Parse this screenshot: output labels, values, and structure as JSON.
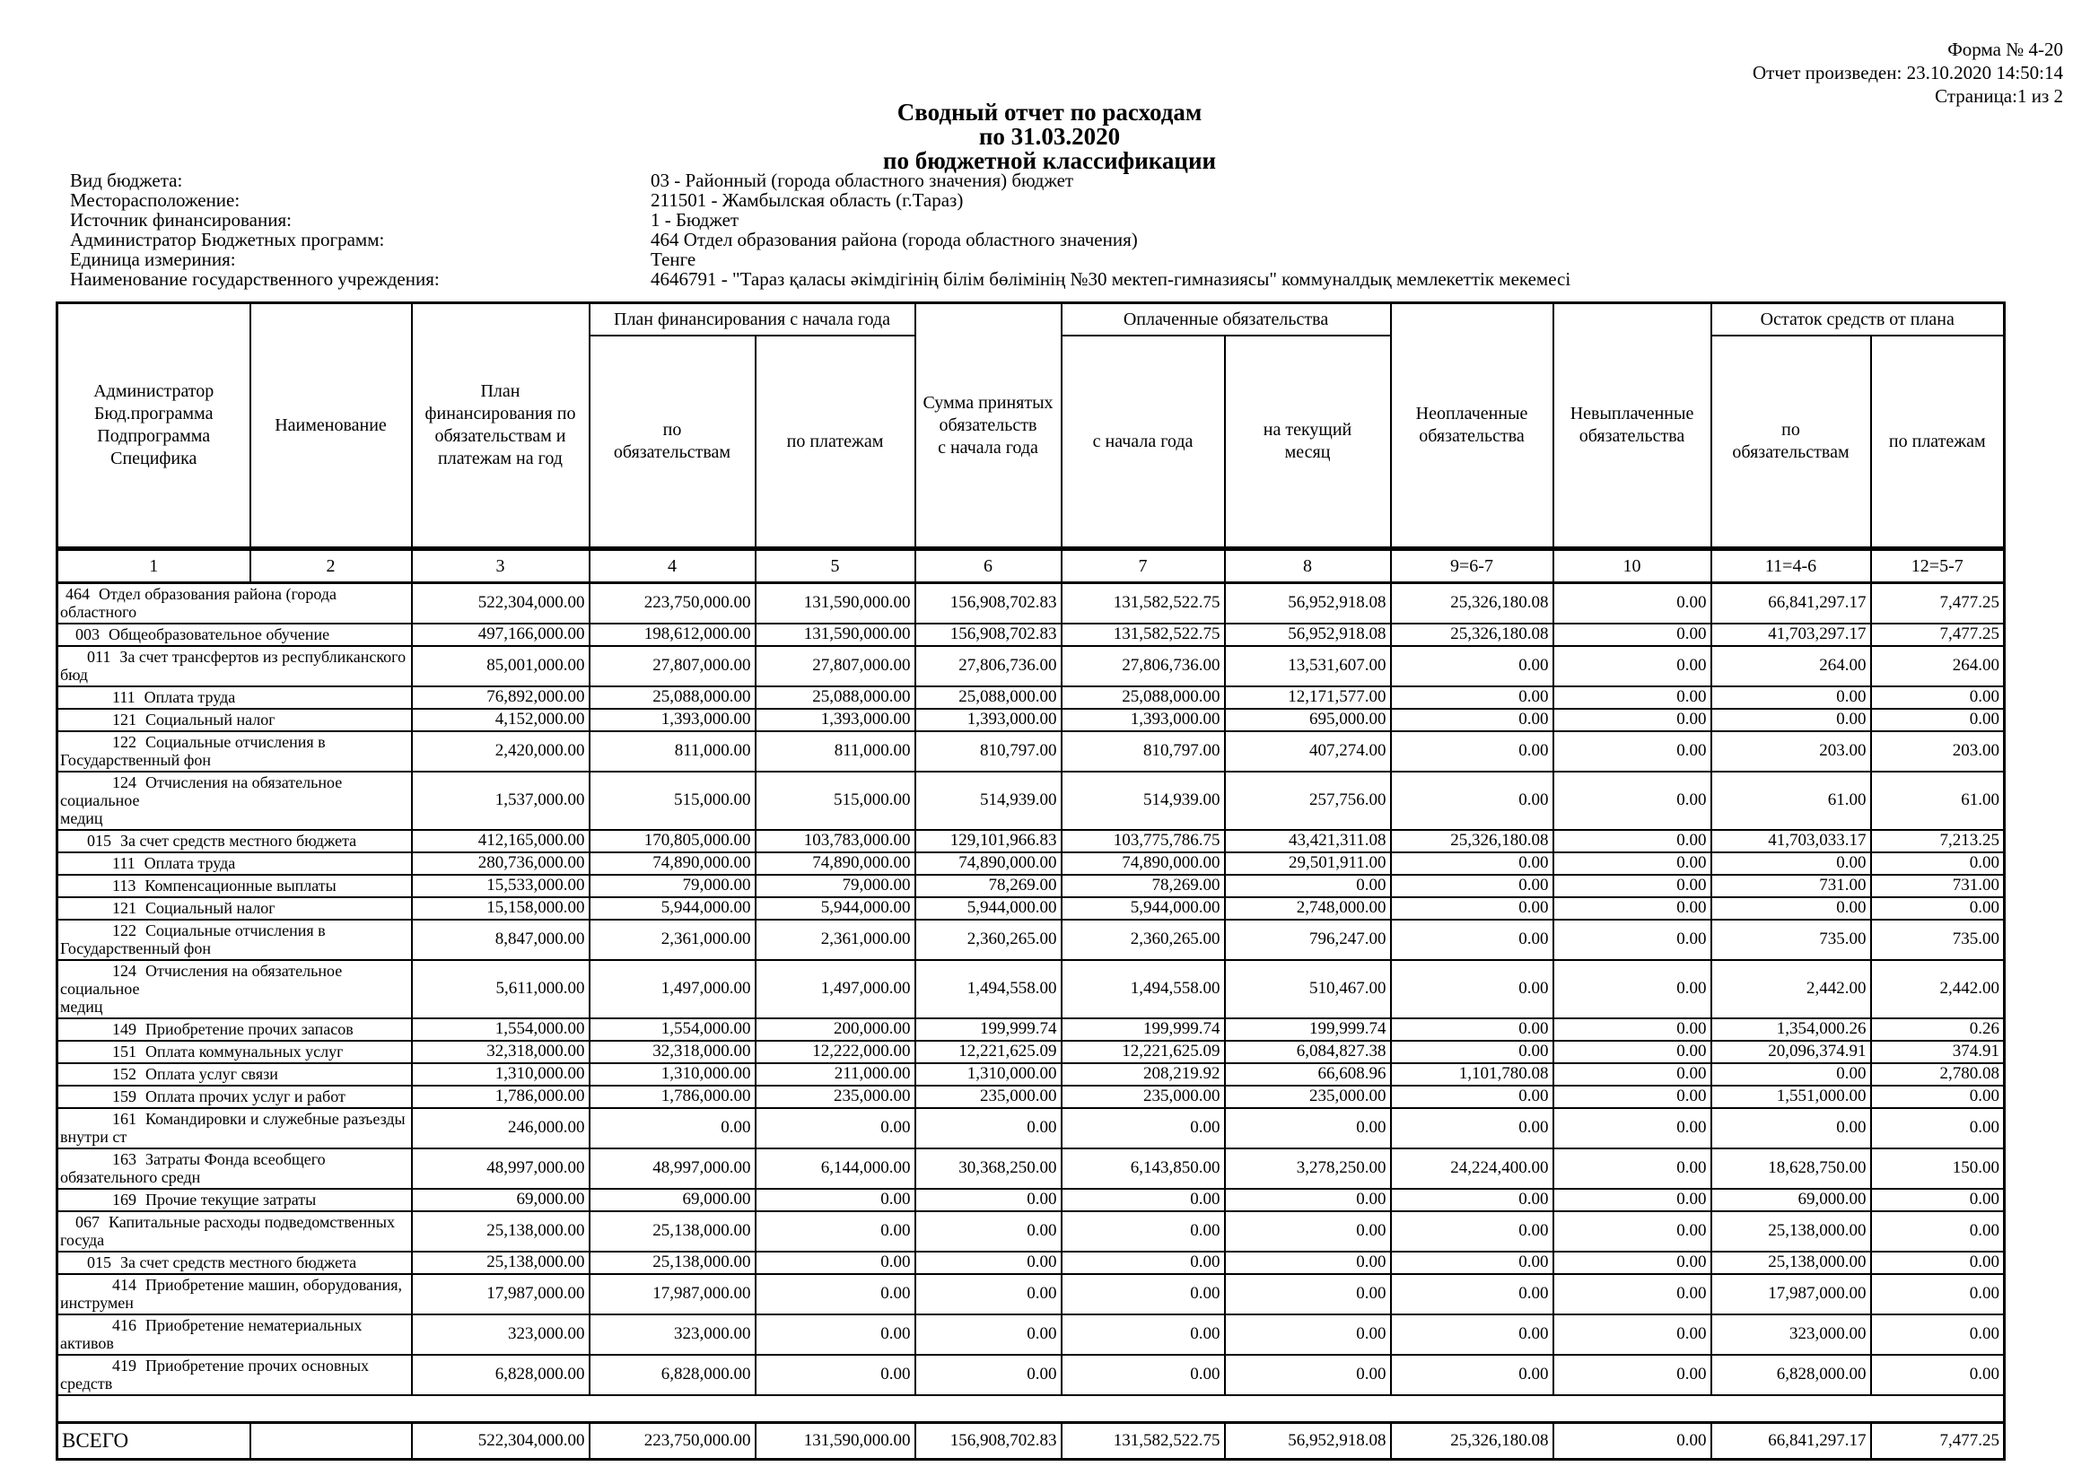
{
  "corner": {
    "form": "Форма № 4-20",
    "generated": "Отчет произведен: 23.10.2020 14:50:14",
    "page": "Страница:1 из 2"
  },
  "title": {
    "line1": "Сводный отчет по расходам",
    "line2": "по 31.03.2020",
    "line3": "по бюджетной классификации"
  },
  "info_fields": [
    {
      "label": "Вид бюджета:",
      "value": "03 - Районный (города областного значения) бюджет"
    },
    {
      "label": "Месторасположение:",
      "value": "211501 - Жамбылская область (г.Тараз)"
    },
    {
      "label": "Источник финансирования:",
      "value": "1 - Бюджет"
    },
    {
      "label": "Администратор Бюджетных программ:",
      "value": "464 Отдел образования района (города областного значения)"
    },
    {
      "label": "Единица измериния:",
      "value": "Тенге"
    },
    {
      "label": "Наименование государственного учреждения:",
      "value": "4646791 - \"Тараз қаласы әкімдігінің білім бөлімінің №30 мектеп-гимназиясы\" коммуналдық мемлекеттік мекемесі"
    }
  ],
  "table": {
    "columns": {
      "col1": "Администратор\nБюд.программа\nПодпрограмма\nСпецифика",
      "col2": "Наименование",
      "col3": "План финансирования по обязательствам и платежам на год",
      "group_plan_start": "План финансирования с начала года",
      "col4": "по\nобязательствам",
      "col5": "по платежам",
      "col6": "Сумма принятых\nобязательств\nс начала года",
      "group_paid": "Оплаченные обязательства",
      "col7": "с начала года",
      "col8": "на текущий\nмесяц",
      "col9": "Неоплаченные\nобязательства",
      "col10": "Невыплаченные\nобязательства",
      "group_remainder": "Остаток средств от плана",
      "col11": "по\nобязательствам",
      "col12": "по платежам"
    },
    "number_row": [
      "1",
      "2",
      "3",
      "4",
      "5",
      "6",
      "7",
      "8",
      "9=6-7",
      "10",
      "11=4-6",
      "12=5-7"
    ],
    "rows": [
      {
        "code": "464",
        "level": 0,
        "name": "Отдел образования района (города областного",
        "values": [
          "522,304,000.00",
          "223,750,000.00",
          "131,590,000.00",
          "156,908,702.83",
          "131,582,522.75",
          "56,952,918.08",
          "25,326,180.08",
          "0.00",
          "66,841,297.17",
          "7,477.25"
        ]
      },
      {
        "code": "003",
        "level": 1,
        "name": "Общеобразовательное обучение",
        "values": [
          "497,166,000.00",
          "198,612,000.00",
          "131,590,000.00",
          "156,908,702.83",
          "131,582,522.75",
          "56,952,918.08",
          "25,326,180.08",
          "0.00",
          "41,703,297.17",
          "7,477.25"
        ]
      },
      {
        "code": "011",
        "level": 2,
        "name": "За счет трансфертов из республиканского\nбюд",
        "values": [
          "85,001,000.00",
          "27,807,000.00",
          "27,807,000.00",
          "27,806,736.00",
          "27,806,736.00",
          "13,531,607.00",
          "0.00",
          "0.00",
          "264.00",
          "264.00"
        ]
      },
      {
        "code": "111",
        "level": 3,
        "name": "Оплата труда",
        "values": [
          "76,892,000.00",
          "25,088,000.00",
          "25,088,000.00",
          "25,088,000.00",
          "25,088,000.00",
          "12,171,577.00",
          "0.00",
          "0.00",
          "0.00",
          "0.00"
        ]
      },
      {
        "code": "121",
        "level": 3,
        "name": "Социальный налог",
        "values": [
          "4,152,000.00",
          "1,393,000.00",
          "1,393,000.00",
          "1,393,000.00",
          "1,393,000.00",
          "695,000.00",
          "0.00",
          "0.00",
          "0.00",
          "0.00"
        ]
      },
      {
        "code": "122",
        "level": 3,
        "name": "Социальные отчисления в\nГосударственный фон",
        "values": [
          "2,420,000.00",
          "811,000.00",
          "811,000.00",
          "810,797.00",
          "810,797.00",
          "407,274.00",
          "0.00",
          "0.00",
          "203.00",
          "203.00"
        ]
      },
      {
        "code": "124",
        "level": 3,
        "name": "Отчисления на обязательное социальное\nмедиц",
        "values": [
          "1,537,000.00",
          "515,000.00",
          "515,000.00",
          "514,939.00",
          "514,939.00",
          "257,756.00",
          "0.00",
          "0.00",
          "61.00",
          "61.00"
        ]
      },
      {
        "code": "015",
        "level": 2,
        "name": "За счет средств местного бюджета",
        "values": [
          "412,165,000.00",
          "170,805,000.00",
          "103,783,000.00",
          "129,101,966.83",
          "103,775,786.75",
          "43,421,311.08",
          "25,326,180.08",
          "0.00",
          "41,703,033.17",
          "7,213.25"
        ]
      },
      {
        "code": "111",
        "level": 3,
        "name": "Оплата труда",
        "values": [
          "280,736,000.00",
          "74,890,000.00",
          "74,890,000.00",
          "74,890,000.00",
          "74,890,000.00",
          "29,501,911.00",
          "0.00",
          "0.00",
          "0.00",
          "0.00"
        ]
      },
      {
        "code": "113",
        "level": 3,
        "name": "Компенсационные выплаты",
        "values": [
          "15,533,000.00",
          "79,000.00",
          "79,000.00",
          "78,269.00",
          "78,269.00",
          "0.00",
          "0.00",
          "0.00",
          "731.00",
          "731.00"
        ]
      },
      {
        "code": "121",
        "level": 3,
        "name": "Социальный налог",
        "values": [
          "15,158,000.00",
          "5,944,000.00",
          "5,944,000.00",
          "5,944,000.00",
          "5,944,000.00",
          "2,748,000.00",
          "0.00",
          "0.00",
          "0.00",
          "0.00"
        ]
      },
      {
        "code": "122",
        "level": 3,
        "name": "Социальные отчисления в\nГосударственный фон",
        "values": [
          "8,847,000.00",
          "2,361,000.00",
          "2,361,000.00",
          "2,360,265.00",
          "2,360,265.00",
          "796,247.00",
          "0.00",
          "0.00",
          "735.00",
          "735.00"
        ]
      },
      {
        "code": "124",
        "level": 3,
        "name": "Отчисления на обязательное социальное\nмедиц",
        "values": [
          "5,611,000.00",
          "1,497,000.00",
          "1,497,000.00",
          "1,494,558.00",
          "1,494,558.00",
          "510,467.00",
          "0.00",
          "0.00",
          "2,442.00",
          "2,442.00"
        ]
      },
      {
        "code": "149",
        "level": 3,
        "name": "Приобретение прочих запасов",
        "values": [
          "1,554,000.00",
          "1,554,000.00",
          "200,000.00",
          "199,999.74",
          "199,999.74",
          "199,999.74",
          "0.00",
          "0.00",
          "1,354,000.26",
          "0.26"
        ]
      },
      {
        "code": "151",
        "level": 3,
        "name": "Оплата коммунальных услуг",
        "values": [
          "32,318,000.00",
          "32,318,000.00",
          "12,222,000.00",
          "12,221,625.09",
          "12,221,625.09",
          "6,084,827.38",
          "0.00",
          "0.00",
          "20,096,374.91",
          "374.91"
        ]
      },
      {
        "code": "152",
        "level": 3,
        "name": "Оплата услуг связи",
        "values": [
          "1,310,000.00",
          "1,310,000.00",
          "211,000.00",
          "1,310,000.00",
          "208,219.92",
          "66,608.96",
          "1,101,780.08",
          "0.00",
          "0.00",
          "2,780.08"
        ]
      },
      {
        "code": "159",
        "level": 3,
        "name": "Оплата прочих услуг и работ",
        "values": [
          "1,786,000.00",
          "1,786,000.00",
          "235,000.00",
          "235,000.00",
          "235,000.00",
          "235,000.00",
          "0.00",
          "0.00",
          "1,551,000.00",
          "0.00"
        ]
      },
      {
        "code": "161",
        "level": 3,
        "name": "Командировки и служебные разъезды\nвнутри ст",
        "values": [
          "246,000.00",
          "0.00",
          "0.00",
          "0.00",
          "0.00",
          "0.00",
          "0.00",
          "0.00",
          "0.00",
          "0.00"
        ]
      },
      {
        "code": "163",
        "level": 3,
        "name": "Затраты Фонда всеобщего\nобязательного средн",
        "values": [
          "48,997,000.00",
          "48,997,000.00",
          "6,144,000.00",
          "30,368,250.00",
          "6,143,850.00",
          "3,278,250.00",
          "24,224,400.00",
          "0.00",
          "18,628,750.00",
          "150.00"
        ]
      },
      {
        "code": "169",
        "level": 3,
        "name": "Прочие текущие затраты",
        "values": [
          "69,000.00",
          "69,000.00",
          "0.00",
          "0.00",
          "0.00",
          "0.00",
          "0.00",
          "0.00",
          "69,000.00",
          "0.00"
        ]
      },
      {
        "code": "067",
        "level": 1,
        "name": "Капитальные расходы подведомственных\nгосуда",
        "values": [
          "25,138,000.00",
          "25,138,000.00",
          "0.00",
          "0.00",
          "0.00",
          "0.00",
          "0.00",
          "0.00",
          "25,138,000.00",
          "0.00"
        ]
      },
      {
        "code": "015",
        "level": 2,
        "name": "За счет средств местного бюджета",
        "values": [
          "25,138,000.00",
          "25,138,000.00",
          "0.00",
          "0.00",
          "0.00",
          "0.00",
          "0.00",
          "0.00",
          "25,138,000.00",
          "0.00"
        ]
      },
      {
        "code": "414",
        "level": 3,
        "name": "Приобретение машин, оборудования,\nинструмен",
        "values": [
          "17,987,000.00",
          "17,987,000.00",
          "0.00",
          "0.00",
          "0.00",
          "0.00",
          "0.00",
          "0.00",
          "17,987,000.00",
          "0.00"
        ]
      },
      {
        "code": "416",
        "level": 3,
        "name": "Приобретение нематериальных активов",
        "values": [
          "323,000.00",
          "323,000.00",
          "0.00",
          "0.00",
          "0.00",
          "0.00",
          "0.00",
          "0.00",
          "323,000.00",
          "0.00"
        ]
      },
      {
        "code": "419",
        "level": 3,
        "name": "Приобретение прочих основных средств",
        "values": [
          "6,828,000.00",
          "6,828,000.00",
          "0.00",
          "0.00",
          "0.00",
          "0.00",
          "0.00",
          "0.00",
          "6,828,000.00",
          "0.00"
        ]
      }
    ],
    "total_row": {
      "label": "ВСЕГО",
      "values": [
        "522,304,000.00",
        "223,750,000.00",
        "131,590,000.00",
        "156,908,702.83",
        "131,582,522.75",
        "56,952,918.08",
        "25,326,180.08",
        "0.00",
        "66,841,297.17",
        "7,477.25"
      ]
    }
  }
}
